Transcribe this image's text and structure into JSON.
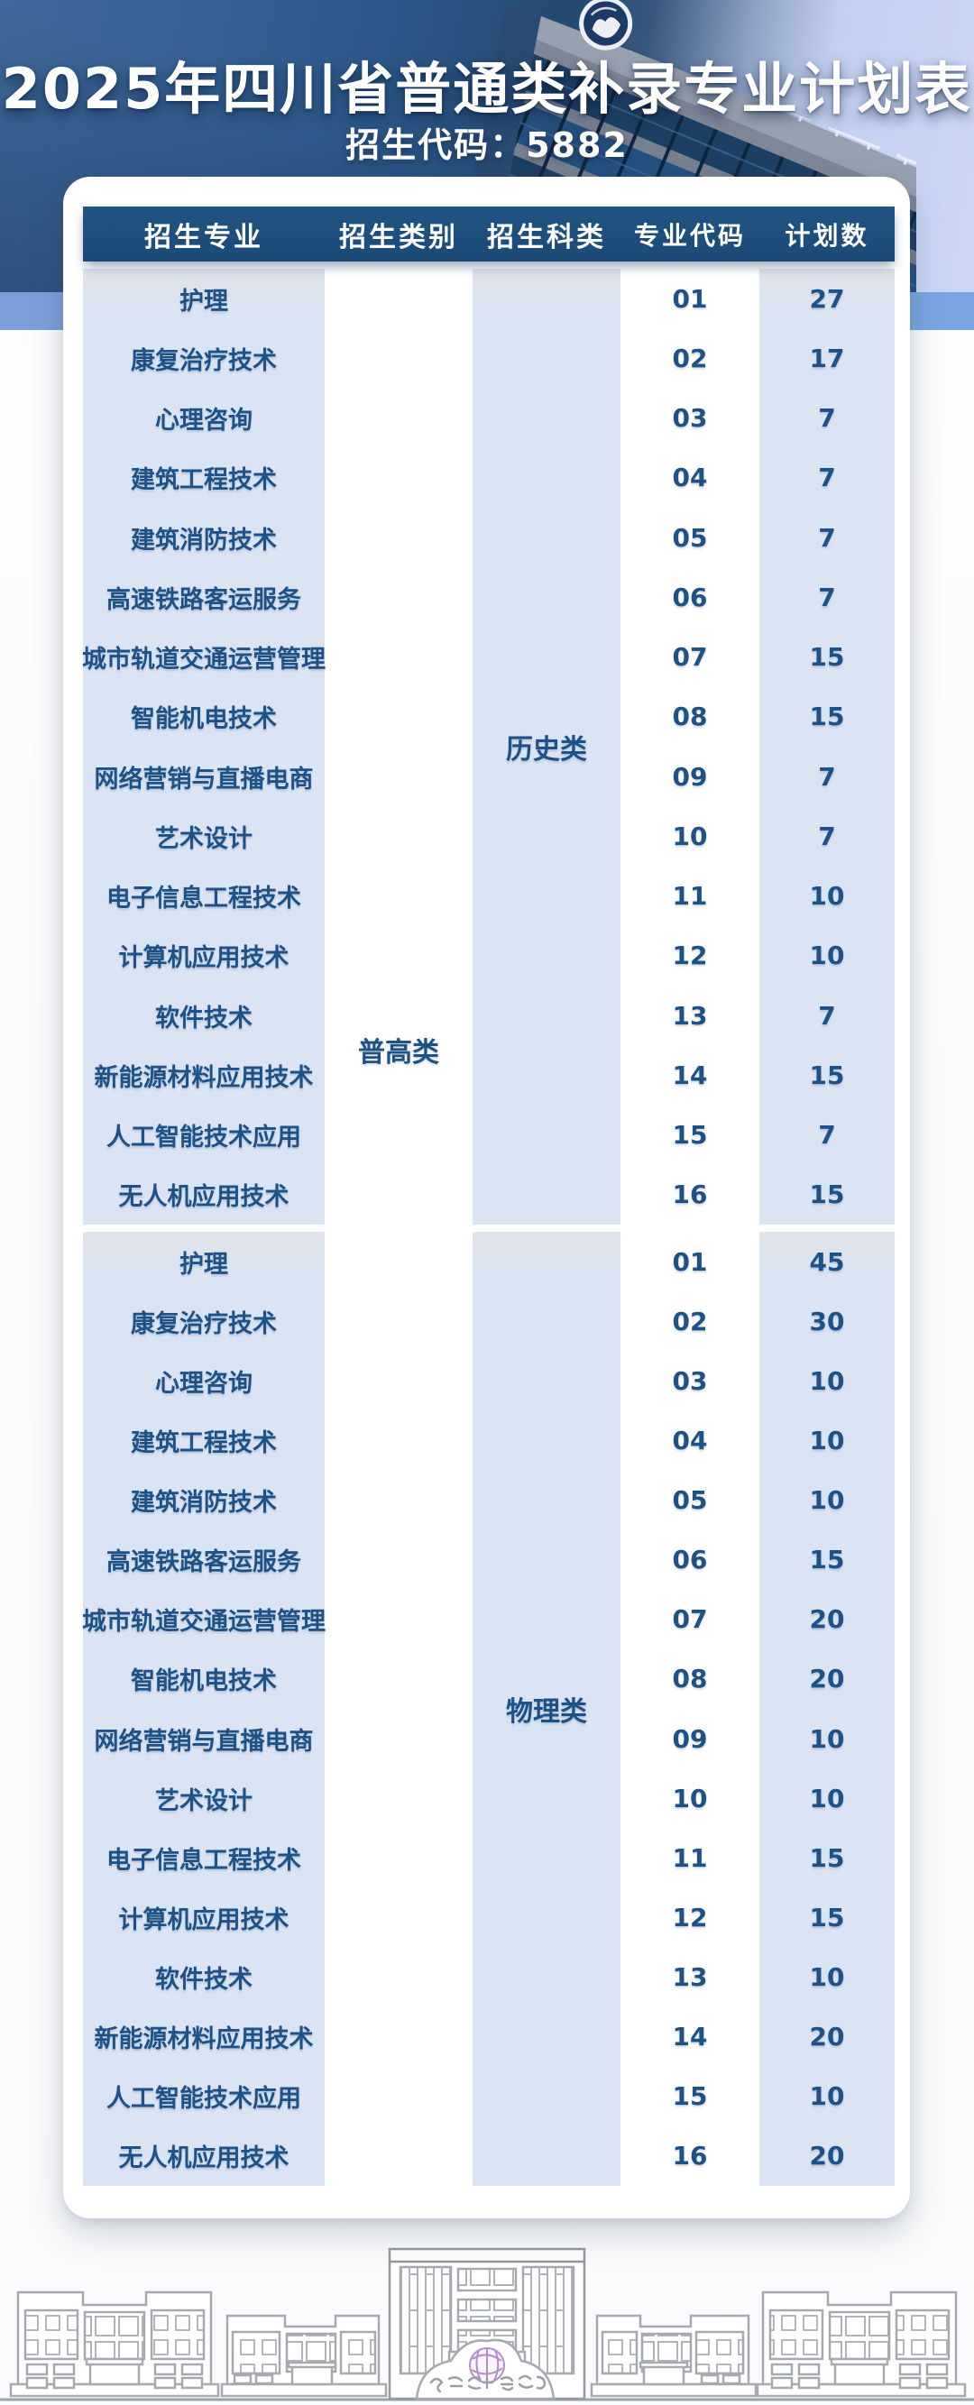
{
  "banner": {
    "title": "2025年四川省普通类补录专业计划表",
    "code_label": "招生代码：5882"
  },
  "table": {
    "columns": [
      "招生专业",
      "招生类别",
      "招生科类",
      "专业代码",
      "计划数"
    ],
    "category_label": "普高类",
    "sections": [
      {
        "subject_type": "历史类",
        "rows": [
          {
            "major": "护理",
            "code": "01",
            "plan": "27"
          },
          {
            "major": "康复治疗技术",
            "code": "02",
            "plan": "17"
          },
          {
            "major": "心理咨询",
            "code": "03",
            "plan": "7"
          },
          {
            "major": "建筑工程技术",
            "code": "04",
            "plan": "7"
          },
          {
            "major": "建筑消防技术",
            "code": "05",
            "plan": "7"
          },
          {
            "major": "高速铁路客运服务",
            "code": "06",
            "plan": "7"
          },
          {
            "major": "城市轨道交通运营管理",
            "code": "07",
            "plan": "15"
          },
          {
            "major": "智能机电技术",
            "code": "08",
            "plan": "15"
          },
          {
            "major": "网络营销与直播电商",
            "code": "09",
            "plan": "7"
          },
          {
            "major": "艺术设计",
            "code": "10",
            "plan": "7"
          },
          {
            "major": "电子信息工程技术",
            "code": "11",
            "plan": "10"
          },
          {
            "major": "计算机应用技术",
            "code": "12",
            "plan": "10"
          },
          {
            "major": "软件技术",
            "code": "13",
            "plan": "7"
          },
          {
            "major": "新能源材料应用技术",
            "code": "14",
            "plan": "15"
          },
          {
            "major": "人工智能技术应用",
            "code": "15",
            "plan": "7"
          },
          {
            "major": "无人机应用技术",
            "code": "16",
            "plan": "15"
          }
        ]
      },
      {
        "subject_type": "物理类",
        "rows": [
          {
            "major": "护理",
            "code": "01",
            "plan": "45"
          },
          {
            "major": "康复治疗技术",
            "code": "02",
            "plan": "30"
          },
          {
            "major": "心理咨询",
            "code": "03",
            "plan": "10"
          },
          {
            "major": "建筑工程技术",
            "code": "04",
            "plan": "10"
          },
          {
            "major": "建筑消防技术",
            "code": "05",
            "plan": "10"
          },
          {
            "major": "高速铁路客运服务",
            "code": "06",
            "plan": "15"
          },
          {
            "major": "城市轨道交通运营管理",
            "code": "07",
            "plan": "20"
          },
          {
            "major": "智能机电技术",
            "code": "08",
            "plan": "20"
          },
          {
            "major": "网络营销与直播电商",
            "code": "09",
            "plan": "10"
          },
          {
            "major": "艺术设计",
            "code": "10",
            "plan": "10"
          },
          {
            "major": "电子信息工程技术",
            "code": "11",
            "plan": "15"
          },
          {
            "major": "计算机应用技术",
            "code": "12",
            "plan": "15"
          },
          {
            "major": "软件技术",
            "code": "13",
            "plan": "10"
          },
          {
            "major": "新能源材料应用技术",
            "code": "14",
            "plan": "20"
          },
          {
            "major": "人工智能技术应用",
            "code": "15",
            "plan": "10"
          },
          {
            "major": "无人机应用技术",
            "code": "16",
            "plan": "20"
          }
        ]
      }
    ]
  },
  "colors": {
    "header_bg": "#1d4e7c",
    "column_bg": "#dce4f0",
    "text_blue": "#1e5286",
    "accent_strip": "#7ba2dd",
    "banner_right": "#ccd8f5"
  },
  "decor": {
    "banner_photo": "campus-building-photo",
    "emblem": "college-emblem-icon",
    "footer_art": "campus-buildings-line-art"
  }
}
